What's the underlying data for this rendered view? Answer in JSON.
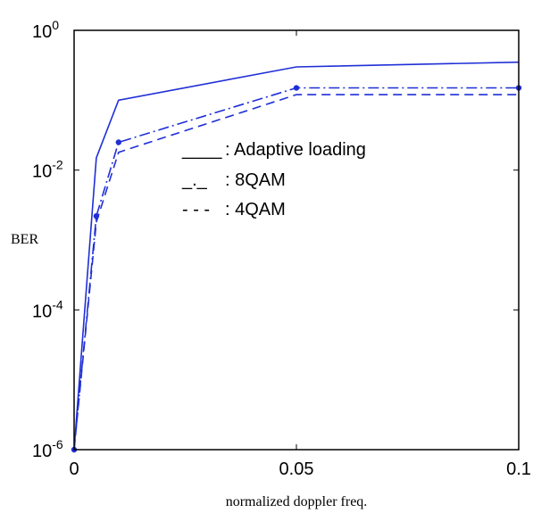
{
  "chart_data": {
    "type": "line",
    "xlabel": "normalized doppler freq.",
    "ylabel": "BER",
    "xscale": "linear",
    "yscale": "log",
    "xlim": [
      0,
      0.1
    ],
    "ylim": [
      1e-06,
      1
    ],
    "x_ticks": [
      "0",
      "0.05",
      "0.1"
    ],
    "y_ticks": [
      {
        "value": 1e-06,
        "base": "10",
        "exp": "-6"
      },
      {
        "value": 0.0001,
        "base": "10",
        "exp": "-4"
      },
      {
        "value": 0.01,
        "base": "10",
        "exp": "-2"
      },
      {
        "value": 1,
        "base": "10",
        "exp": "0"
      }
    ],
    "grid": false,
    "legend_position": "center-right",
    "line_color": "#1f2fd6",
    "series": [
      {
        "name": ": Adaptive loading",
        "legend_key": "____",
        "style": "solid",
        "markers": false,
        "x": [
          0,
          0.005,
          0.01,
          0.05,
          0.1
        ],
        "y": [
          1e-06,
          0.015,
          0.1,
          0.3,
          0.35
        ]
      },
      {
        "name": ": 8QAM",
        "legend_key": "_._",
        "style": "dashdot",
        "markers": true,
        "x": [
          0,
          0.005,
          0.01,
          0.05,
          0.1
        ],
        "y": [
          1e-06,
          0.0022,
          0.025,
          0.15,
          0.15
        ]
      },
      {
        "name": ": 4QAM",
        "legend_key": "- - -",
        "style": "dashed",
        "markers": false,
        "x": [
          0,
          0.005,
          0.01,
          0.05,
          0.1
        ],
        "y": [
          1e-06,
          0.0018,
          0.018,
          0.12,
          0.12
        ]
      }
    ]
  }
}
